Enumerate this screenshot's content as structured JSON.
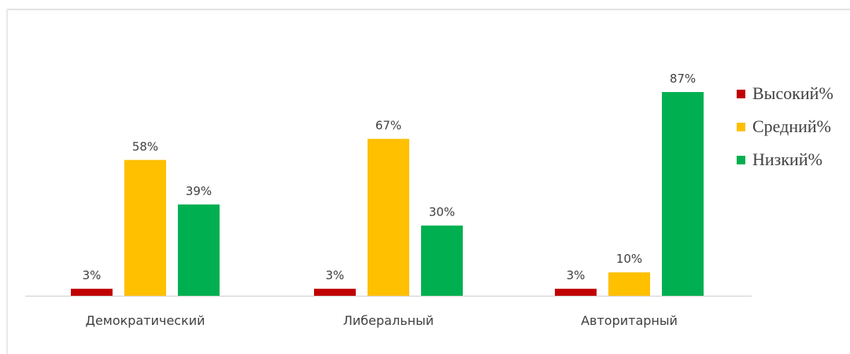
{
  "chart_data": {
    "type": "bar",
    "categories": [
      "Демократический",
      "Либеральный",
      "Авторитарный"
    ],
    "series": [
      {
        "name": "Высокий%",
        "color": "#c00000",
        "values": [
          3,
          3,
          3
        ],
        "labels": [
          "3%",
          "3%",
          "3%"
        ]
      },
      {
        "name": "Средний%",
        "color": "#ffc000",
        "values": [
          58,
          67,
          10
        ],
        "labels": [
          "58%",
          "67%",
          "10%"
        ]
      },
      {
        "name": "Низкий%",
        "color": "#00b050",
        "values": [
          39,
          30,
          87
        ],
        "labels": [
          "39%",
          "30%",
          "87%"
        ]
      }
    ],
    "title": "",
    "xlabel": "",
    "ylabel": "",
    "ylim": [
      0,
      100
    ],
    "grid": false,
    "legend_position": "right"
  }
}
